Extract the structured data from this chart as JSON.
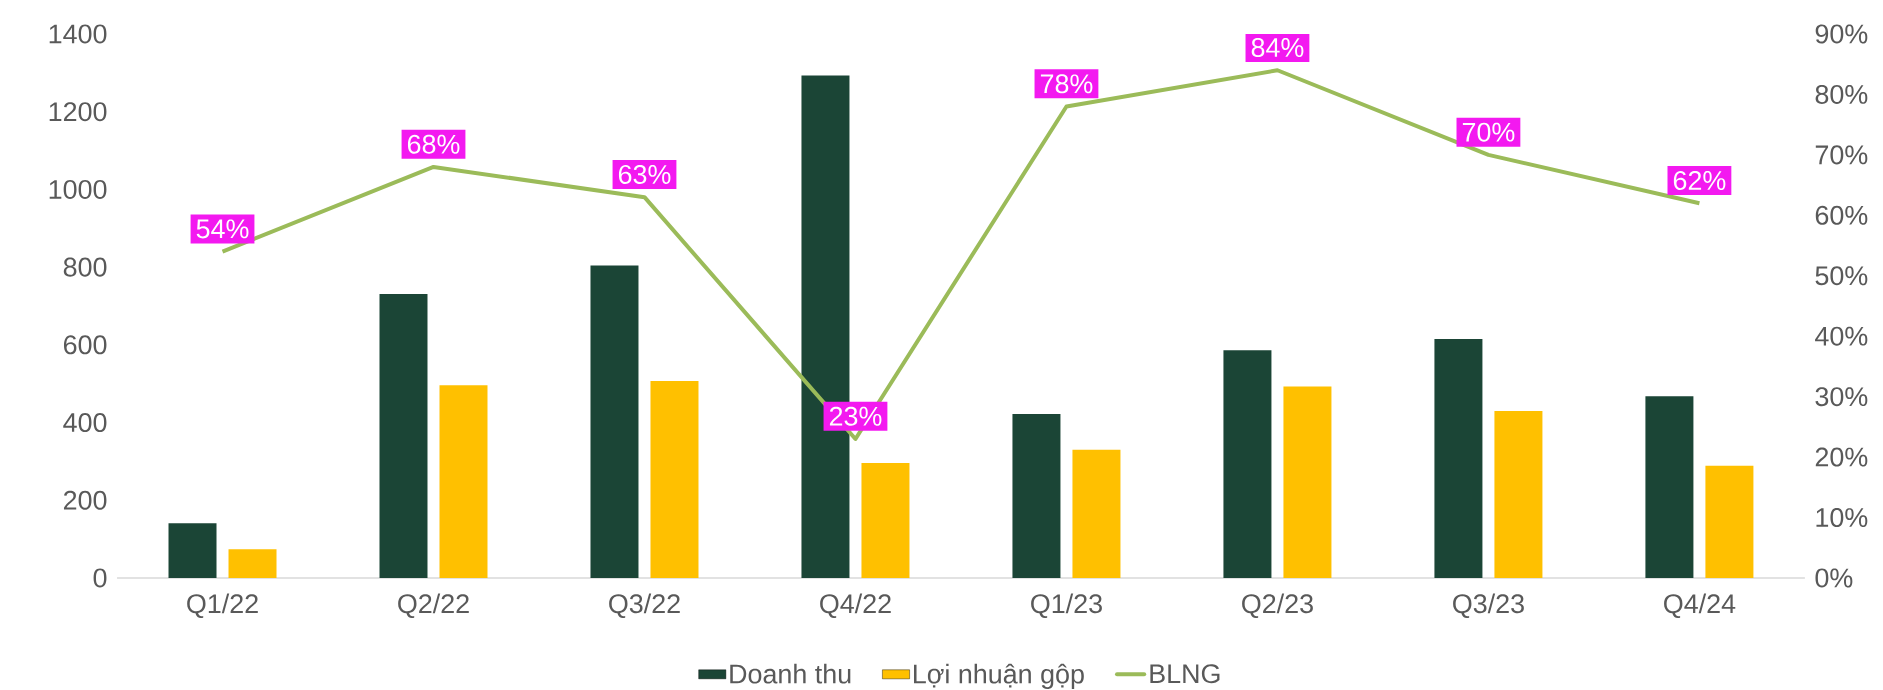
{
  "chart_data": {
    "type": "bar",
    "categories": [
      "Q1/22",
      "Q2/22",
      "Q3/22",
      "Q4/22",
      "Q1/23",
      "Q2/23",
      "Q3/23",
      "Q4/24"
    ],
    "series": [
      {
        "name": "Doanh thu",
        "color": "#1b4536",
        "values": [
          141,
          731,
          804,
          1293,
          422,
          586,
          615,
          468
        ]
      },
      {
        "name": "Lợi nhuận gộp",
        "color": "#ffc000",
        "values": [
          74,
          496,
          507,
          296,
          330,
          493,
          430,
          289
        ]
      },
      {
        "name": "BLNG",
        "color": "#9bbb59",
        "type": "line",
        "axis": "y2",
        "marker": "none",
        "values": [
          54,
          68,
          63,
          23,
          78,
          84,
          70,
          62
        ],
        "value_labels": [
          "54%",
          "68%",
          "63%",
          "23%",
          "78%",
          "84%",
          "70%",
          "62%"
        ]
      }
    ],
    "ylim": [
      0,
      1400
    ],
    "yticks": [
      0,
      200,
      400,
      600,
      800,
      1000,
      1200,
      1400
    ],
    "y2lim": [
      0,
      90
    ],
    "y2ticks": [
      {
        "value": 0,
        "label": "0%"
      },
      {
        "value": 10,
        "label": "10%"
      },
      {
        "value": 20,
        "label": "20%"
      },
      {
        "value": 30,
        "label": "30%"
      },
      {
        "value": 40,
        "label": "40%"
      },
      {
        "value": 50,
        "label": "50%"
      },
      {
        "value": 60,
        "label": "60%"
      },
      {
        "value": 70,
        "label": "70%"
      },
      {
        "value": 80,
        "label": "80%"
      },
      {
        "value": 90,
        "label": "90%"
      }
    ],
    "legend": "bottom"
  }
}
